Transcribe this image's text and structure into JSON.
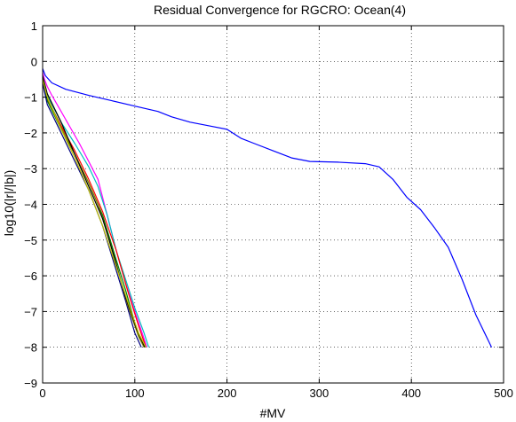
{
  "chart_data": {
    "type": "line",
    "title": "Residual Convergence for RGCRO: Ocean(4)",
    "xlabel": "#MV",
    "ylabel": "log10(|r|/|b|)",
    "xlim": [
      0,
      500
    ],
    "ylim": [
      -9,
      1
    ],
    "xticks": [
      0,
      100,
      200,
      300,
      400,
      500
    ],
    "yticks": [
      -9,
      -8,
      -7,
      -6,
      -5,
      -4,
      -3,
      -2,
      -1,
      0,
      1
    ],
    "xtick_labels": [
      "0",
      "100",
      "200",
      "300",
      "400",
      "500"
    ],
    "ytick_labels": [
      "−9",
      "−8",
      "−7",
      "−6",
      "−5",
      "−4",
      "−3",
      "−2",
      "−1",
      "0",
      "1"
    ],
    "grid": true,
    "series": [
      {
        "color": "#0000ff",
        "points": [
          [
            0,
            -0.2
          ],
          [
            3,
            -0.4
          ],
          [
            10,
            -0.6
          ],
          [
            25,
            -0.78
          ],
          [
            50,
            -0.95
          ],
          [
            75,
            -1.1
          ],
          [
            100,
            -1.25
          ],
          [
            125,
            -1.4
          ],
          [
            140,
            -1.55
          ],
          [
            160,
            -1.7
          ],
          [
            180,
            -1.8
          ],
          [
            200,
            -1.9
          ],
          [
            215,
            -2.15
          ],
          [
            230,
            -2.3
          ],
          [
            250,
            -2.5
          ],
          [
            270,
            -2.7
          ],
          [
            290,
            -2.8
          ],
          [
            320,
            -2.82
          ],
          [
            350,
            -2.86
          ],
          [
            365,
            -2.95
          ],
          [
            380,
            -3.3
          ],
          [
            395,
            -3.8
          ],
          [
            410,
            -4.15
          ],
          [
            425,
            -4.65
          ],
          [
            440,
            -5.2
          ],
          [
            455,
            -6.1
          ],
          [
            470,
            -7.1
          ],
          [
            487,
            -8.0
          ]
        ]
      },
      {
        "color": "#ff00ff",
        "points": [
          [
            0,
            -0.3
          ],
          [
            2,
            -0.5
          ],
          [
            5,
            -0.7
          ],
          [
            10,
            -0.95
          ],
          [
            20,
            -1.4
          ],
          [
            40,
            -2.3
          ],
          [
            60,
            -3.3
          ],
          [
            70,
            -4.3
          ],
          [
            80,
            -5.3
          ],
          [
            90,
            -6.2
          ],
          [
            100,
            -7.0
          ],
          [
            108,
            -7.6
          ],
          [
            113,
            -8.0
          ]
        ]
      },
      {
        "color": "#00bfbf",
        "points": [
          [
            0,
            -0.45
          ],
          [
            6,
            -1.0
          ],
          [
            20,
            -1.7
          ],
          [
            35,
            -2.3
          ],
          [
            50,
            -2.95
          ],
          [
            60,
            -3.5
          ],
          [
            70,
            -4.3
          ],
          [
            80,
            -5.3
          ],
          [
            90,
            -6.1
          ],
          [
            100,
            -6.9
          ],
          [
            110,
            -7.6
          ],
          [
            115,
            -8.0
          ]
        ]
      },
      {
        "color": "#ff0000",
        "points": [
          [
            0,
            -0.5
          ],
          [
            5,
            -1.05
          ],
          [
            20,
            -1.8
          ],
          [
            35,
            -2.5
          ],
          [
            50,
            -3.3
          ],
          [
            65,
            -4.2
          ],
          [
            80,
            -5.3
          ],
          [
            92,
            -6.4
          ],
          [
            104,
            -7.4
          ],
          [
            112,
            -8.0
          ]
        ]
      },
      {
        "color": "#008000",
        "points": [
          [
            0,
            -0.55
          ],
          [
            5,
            -1.1
          ],
          [
            20,
            -1.9
          ],
          [
            35,
            -2.6
          ],
          [
            50,
            -3.4
          ],
          [
            65,
            -4.3
          ],
          [
            78,
            -5.4
          ],
          [
            90,
            -6.4
          ],
          [
            102,
            -7.5
          ],
          [
            110,
            -8.0
          ]
        ]
      },
      {
        "color": "#000080",
        "points": [
          [
            0,
            -0.6
          ],
          [
            5,
            -1.2
          ],
          [
            20,
            -2.0
          ],
          [
            35,
            -2.8
          ],
          [
            50,
            -3.6
          ],
          [
            65,
            -4.6
          ],
          [
            78,
            -5.7
          ],
          [
            90,
            -6.7
          ],
          [
            100,
            -7.6
          ],
          [
            107,
            -8.0
          ]
        ]
      },
      {
        "color": "#808000",
        "points": [
          [
            0,
            -0.5
          ],
          [
            5,
            -1.0
          ],
          [
            20,
            -1.85
          ],
          [
            35,
            -2.6
          ],
          [
            50,
            -3.4
          ],
          [
            60,
            -4.0
          ],
          [
            70,
            -4.8
          ],
          [
            80,
            -5.7
          ],
          [
            92,
            -6.8
          ],
          [
            104,
            -7.7
          ],
          [
            110,
            -8.0
          ]
        ]
      },
      {
        "color": "#000000",
        "points": [
          [
            0,
            -0.4
          ],
          [
            5,
            -0.9
          ],
          [
            20,
            -1.7
          ],
          [
            35,
            -2.6
          ],
          [
            50,
            -3.5
          ],
          [
            65,
            -4.4
          ],
          [
            78,
            -5.5
          ],
          [
            90,
            -6.6
          ],
          [
            102,
            -7.5
          ],
          [
            111,
            -8.0
          ]
        ]
      },
      {
        "color": "#bfbf00",
        "points": [
          [
            0,
            -0.5
          ],
          [
            5,
            -1.0
          ],
          [
            20,
            -1.9
          ],
          [
            35,
            -2.7
          ],
          [
            50,
            -3.6
          ],
          [
            65,
            -4.6
          ],
          [
            78,
            -5.6
          ],
          [
            92,
            -6.7
          ],
          [
            104,
            -7.6
          ],
          [
            112,
            -8.0
          ]
        ]
      }
    ]
  }
}
